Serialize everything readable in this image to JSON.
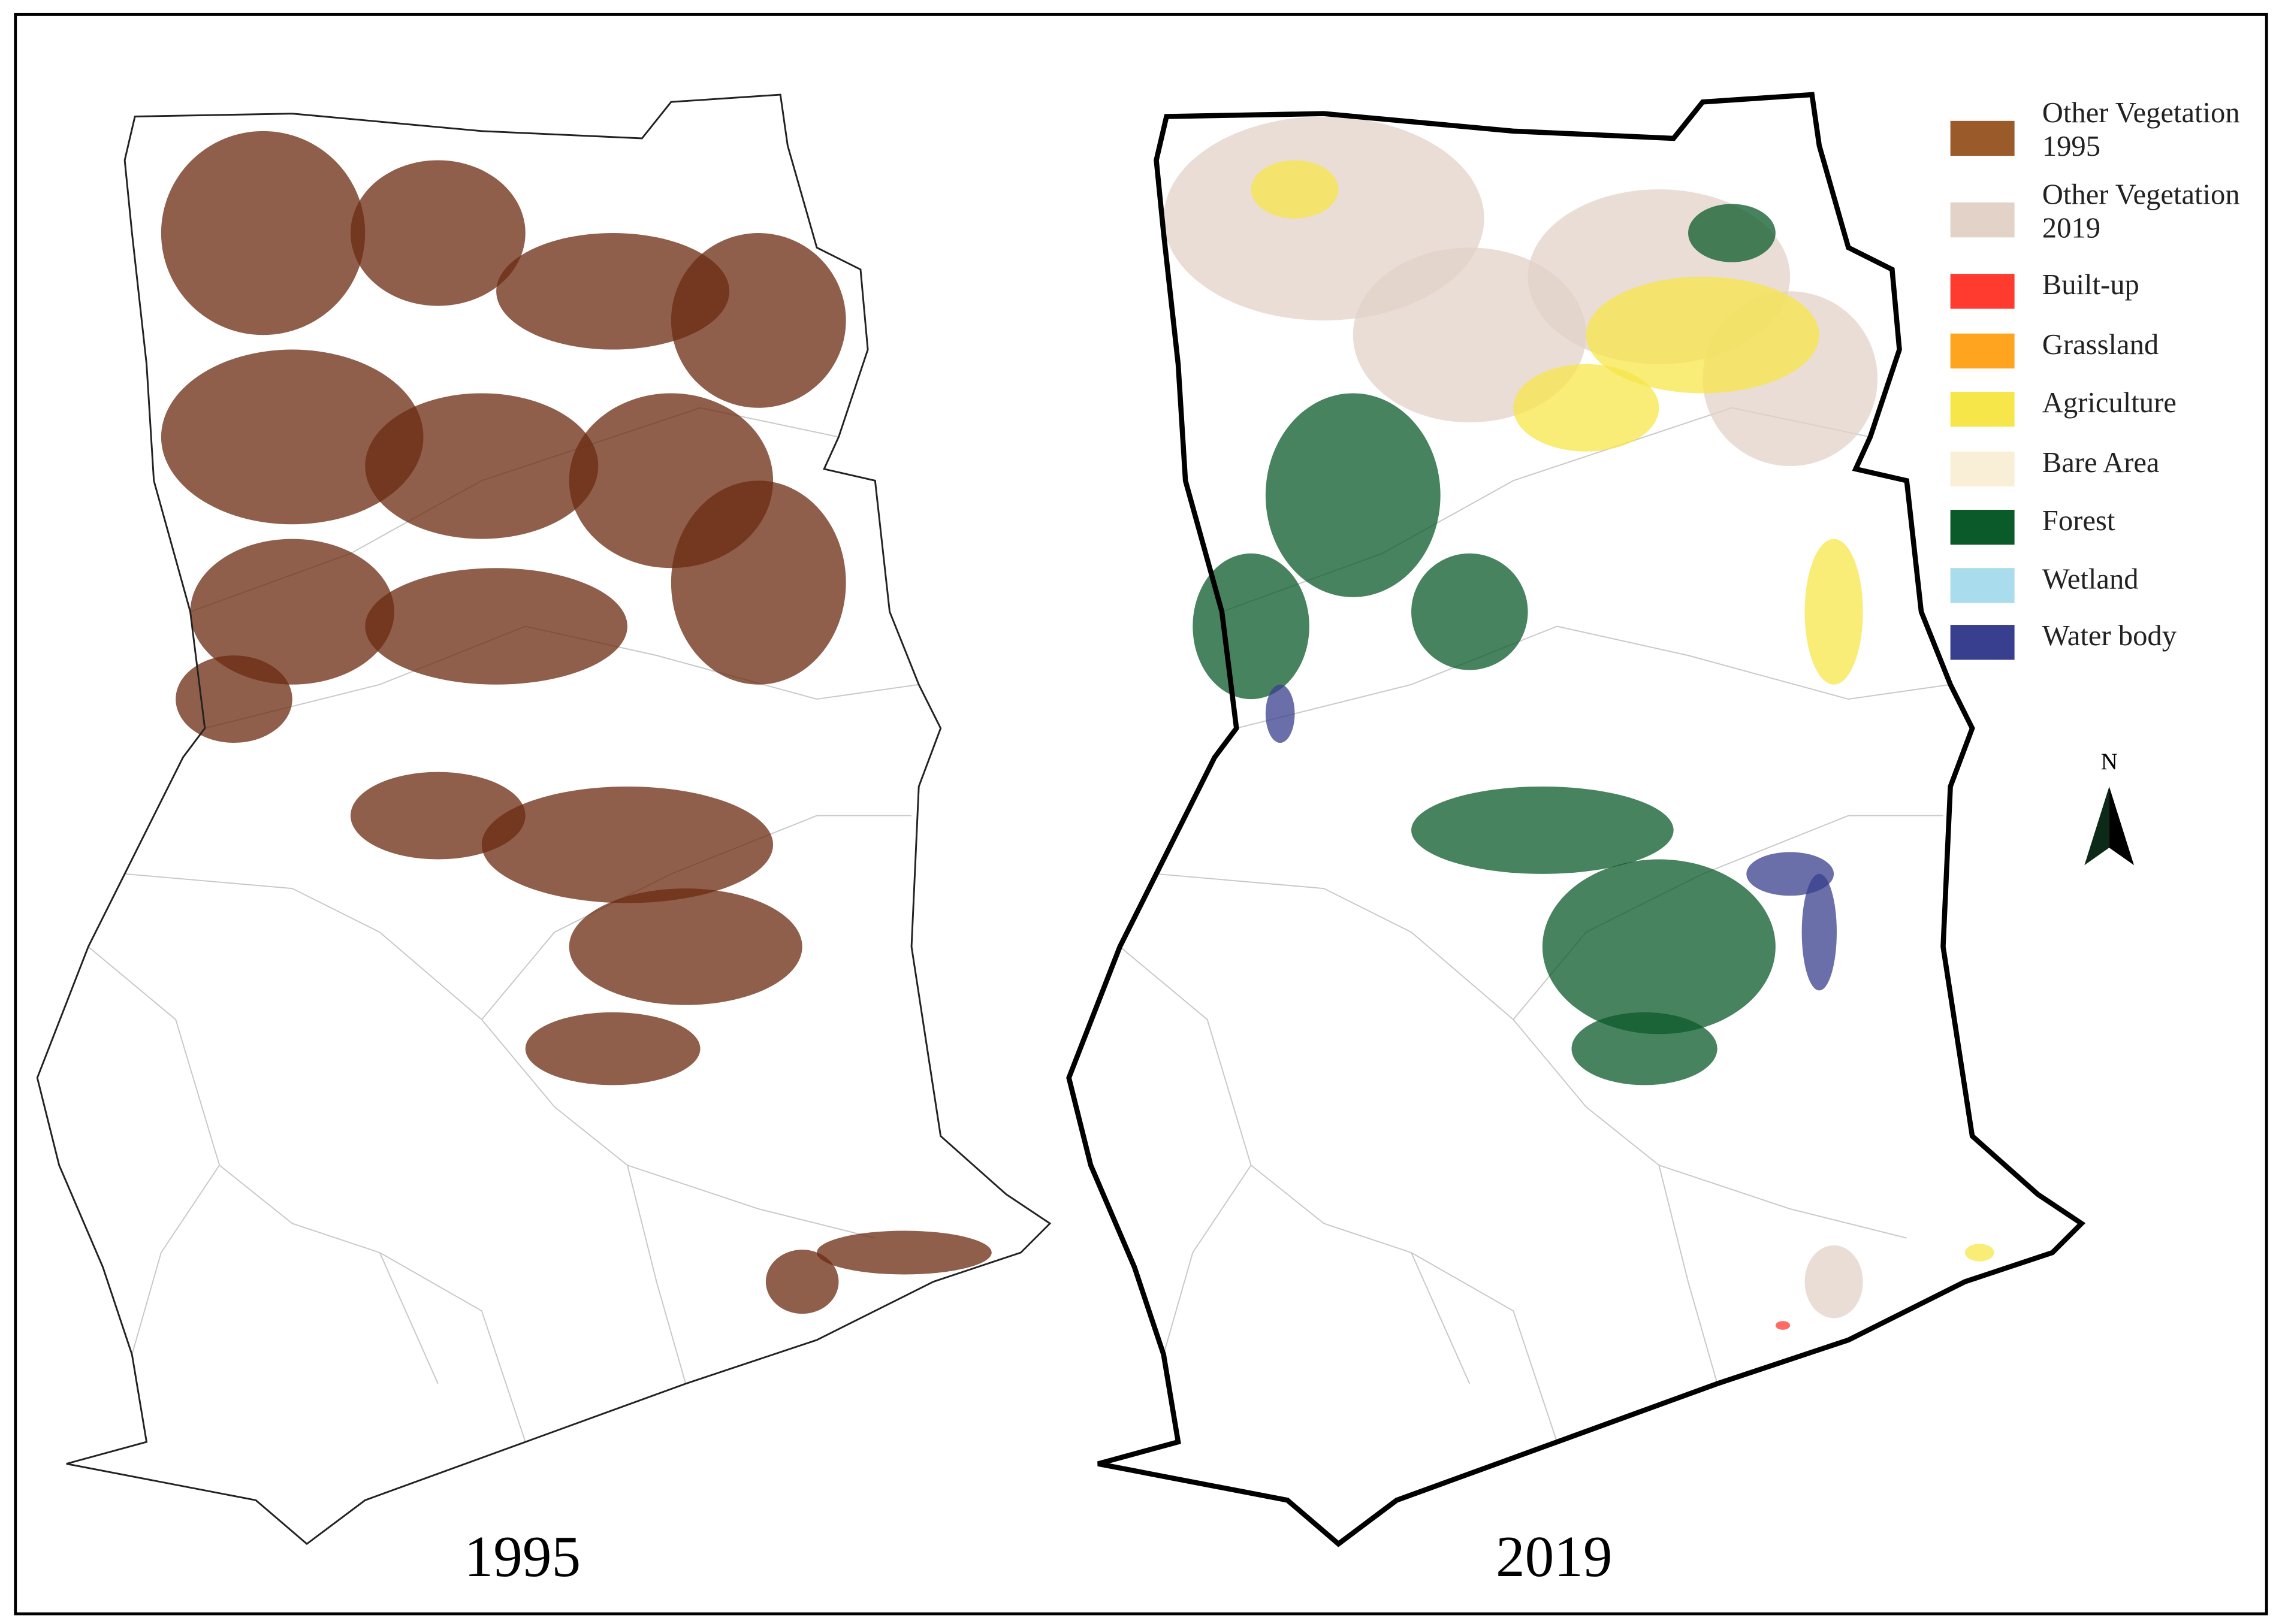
{
  "maps": [
    {
      "label": "1995"
    },
    {
      "label": "2019"
    }
  ],
  "legend": {
    "items": [
      {
        "label": [
          "Other Vegetation",
          "1995"
        ],
        "color": "#9b5a2a"
      },
      {
        "label": [
          "Other Vegetation",
          "2019"
        ],
        "color": "#e2d2c8"
      },
      {
        "label": [
          "Built-up"
        ],
        "color": "#ff3b30"
      },
      {
        "label": [
          "Grassland"
        ],
        "color": "#ffa41f"
      },
      {
        "label": [
          "Agriculture"
        ],
        "color": "#f7e64a"
      },
      {
        "label": [
          "Bare Area"
        ],
        "color": "#f8efd6"
      },
      {
        "label": [
          "Forest"
        ],
        "color": "#0b5a2a"
      },
      {
        "label": [
          "Wetland"
        ],
        "color": "#a9dcec"
      },
      {
        "label": [
          "Water body"
        ],
        "color": "#383f8e"
      }
    ]
  },
  "north_arrow": {
    "label": "N"
  }
}
